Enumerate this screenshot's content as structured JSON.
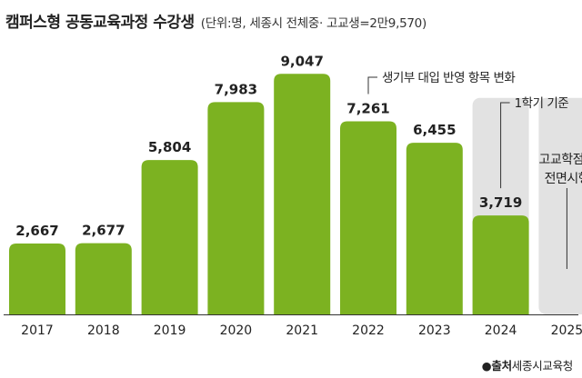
{
  "title": "캠퍼스형 공동교육과정 수강생",
  "subtitle": "(단위:명, 세종시 전체중· 고교생=2만9,570)",
  "source": {
    "bullet": "●",
    "label": "출처",
    "org": "세종시교육청"
  },
  "colors": {
    "bar": "#7cb221",
    "placeholder": "#e2e2e2",
    "axis": "#333333",
    "text": "#222222"
  },
  "chart_data": {
    "type": "bar",
    "title": "캠퍼스형 공동교육과정 수강생",
    "ylabel": "",
    "xlabel": "",
    "ylim": [
      0,
      9500
    ],
    "categories": [
      "2017",
      "2018",
      "2019",
      "2020",
      "2021",
      "2022",
      "2023",
      "2024",
      "2025"
    ],
    "values": [
      2667,
      2677,
      5804,
      7983,
      9047,
      7261,
      6455,
      3719,
      null
    ],
    "data_labels": [
      "2,667",
      "2,677",
      "5,804",
      "7,983",
      "9,047",
      "7,261",
      "6,455",
      "3,719",
      ""
    ],
    "placeholder_columns": [
      7,
      8
    ],
    "annotations": [
      {
        "category_index": 5,
        "text": "생기부 대입 반영 항목 변화"
      },
      {
        "category_index": 7,
        "text": "1학기 기준"
      },
      {
        "category_index": 8,
        "lines": [
          "고교학점제",
          "전면시행"
        ]
      }
    ]
  }
}
